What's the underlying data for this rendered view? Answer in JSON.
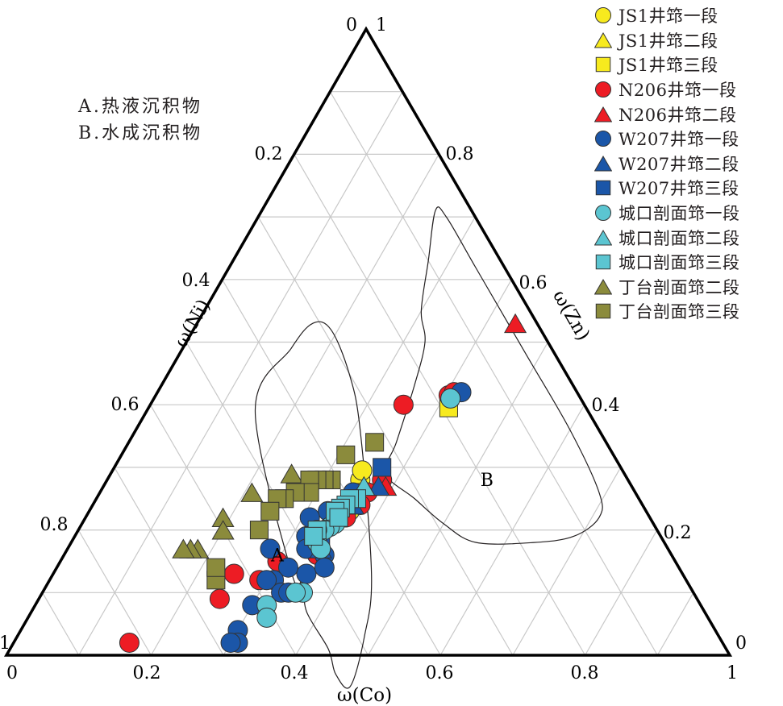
{
  "chart_data": {
    "type": "ternary-scatter",
    "title": "",
    "axes": {
      "bottom": {
        "label": "ω(Co)",
        "ticks": [
          "0",
          "0.2",
          "0.4",
          "0.6",
          "0.8",
          "1"
        ]
      },
      "left": {
        "label": "ω(Ni)",
        "ticks": [
          "0",
          "0.2",
          "0.4",
          "0.6",
          "0.8",
          "1"
        ]
      },
      "right": {
        "label": "ω(Zn)",
        "ticks": [
          "1",
          "0.8",
          "0.6",
          "0.4",
          "0.2",
          "0"
        ]
      }
    },
    "vertex_labels": {
      "top_left": "0",
      "top_right": "1",
      "bottom_left_top": "1",
      "bottom_left": "0",
      "bottom_right_top": "0",
      "bottom_right": "1"
    },
    "grid": true,
    "grid_step": 0.1,
    "region_labels": [
      {
        "id": "A",
        "text": "A",
        "co": 0.3,
        "ni": 0.55
      },
      {
        "id": "B",
        "text": "B",
        "co": 0.53,
        "ni": 0.2
      }
    ],
    "region_notes": [
      "A.热液沉积物",
      "B.水成沉积物"
    ],
    "regions": [
      {
        "name": "A",
        "boundary": [
          [
            0.33,
            0.54
          ],
          [
            0.35,
            0.53
          ],
          [
            0.38,
            0.55
          ],
          [
            0.44,
            0.55
          ],
          [
            0.47,
            0.56
          ],
          [
            0.5,
            0.55
          ],
          [
            0.48,
            0.49
          ],
          [
            0.44,
            0.43
          ],
          [
            0.31,
            0.33
          ],
          [
            0.25,
            0.3
          ],
          [
            0.19,
            0.29
          ],
          [
            0.16,
            0.31
          ],
          [
            0.15,
            0.36
          ],
          [
            0.15,
            0.46
          ]
        ]
      },
      {
        "name": "B",
        "boundary": [
          [
            0.38,
            0.33
          ],
          [
            0.44,
            0.31
          ],
          [
            0.5,
            0.29
          ],
          [
            0.56,
            0.26
          ],
          [
            0.64,
            0.18
          ],
          [
            0.69,
            0.12
          ],
          [
            0.71,
            0.07
          ],
          [
            0.69,
            0.05
          ],
          [
            0.6,
            0.04
          ],
          [
            0.48,
            0.04
          ],
          [
            0.34,
            0.04
          ],
          [
            0.26,
            0.04
          ],
          [
            0.24,
            0.05
          ],
          [
            0.27,
            0.1
          ],
          [
            0.3,
            0.15
          ],
          [
            0.33,
            0.17
          ],
          [
            0.35,
            0.22
          ],
          [
            0.37,
            0.29
          ]
        ]
      }
    ],
    "legend_position": "top-right",
    "series": [
      {
        "name": "JS1井筇一段",
        "marker": "circle",
        "color": "#f7ea1e",
        "points": [
          [
            0.345,
            0.45
          ],
          [
            0.36,
            0.41
          ],
          [
            0.355,
            0.39
          ],
          [
            0.35,
            0.37
          ],
          [
            0.345,
            0.36
          ]
        ]
      },
      {
        "name": "JS1井筇二段",
        "marker": "triangle",
        "color": "#f7ea1e",
        "points": []
      },
      {
        "name": "JS1井筇三段",
        "marker": "square",
        "color": "#f7ea1e",
        "points": [
          [
            0.36,
            0.38
          ],
          [
            0.415,
            0.19
          ],
          [
            0.355,
            0.42
          ]
        ]
      },
      {
        "name": "N206井筇一段",
        "marker": "circle",
        "color": "#ed1c24",
        "points": [
          [
            0.405,
            0.18
          ],
          [
            0.41,
            0.17
          ],
          [
            0.38,
            0.34
          ],
          [
            0.37,
            0.37
          ],
          [
            0.37,
            0.39
          ],
          [
            0.36,
            0.42
          ],
          [
            0.35,
            0.49
          ],
          [
            0.3,
            0.55
          ],
          [
            0.29,
            0.59
          ],
          [
            0.25,
            0.62
          ],
          [
            0.25,
            0.66
          ],
          [
            0.16,
            0.82
          ],
          [
            0.35,
            0.25
          ]
        ]
      },
      {
        "name": "N206井筇二段",
        "marker": "triangle",
        "color": "#ed1c24",
        "points": [
          [
            0.44,
            0.03
          ],
          [
            0.39,
            0.34
          ]
        ]
      },
      {
        "name": "W207井筇一段",
        "marker": "circle",
        "color": "#1b56a8",
        "points": [
          [
            0.42,
            0.16
          ],
          [
            0.35,
            0.39
          ],
          [
            0.33,
            0.44
          ],
          [
            0.31,
            0.47
          ],
          [
            0.32,
            0.49
          ],
          [
            0.33,
            0.5
          ],
          [
            0.35,
            0.52
          ],
          [
            0.32,
            0.54
          ],
          [
            0.31,
            0.57
          ],
          [
            0.3,
            0.58
          ],
          [
            0.3,
            0.62
          ],
          [
            0.33,
            0.57
          ],
          [
            0.34,
            0.56
          ],
          [
            0.3,
            0.66
          ],
          [
            0.31,
            0.67
          ],
          [
            0.3,
            0.68
          ],
          [
            0.28,
            0.55
          ],
          [
            0.36,
            0.48
          ],
          [
            0.37,
            0.49
          ]
        ]
      },
      {
        "name": "W207井筇二段",
        "marker": "triangle",
        "color": "#1b56a8",
        "points": [
          [
            0.38,
            0.35
          ],
          [
            0.36,
            0.4
          ],
          [
            0.35,
            0.48
          ]
        ]
      },
      {
        "name": "W207井筇三段",
        "marker": "square",
        "color": "#1b56a8",
        "points": [
          [
            0.37,
            0.33
          ],
          [
            0.34,
            0.47
          ]
        ]
      },
      {
        "name": "城口剖面筇一段",
        "marker": "circle",
        "color": "#5bc5d1",
        "points": [
          [
            0.41,
            0.18
          ],
          [
            0.35,
            0.44
          ],
          [
            0.345,
            0.45
          ],
          [
            0.34,
            0.46
          ],
          [
            0.33,
            0.47
          ],
          [
            0.34,
            0.48
          ],
          [
            0.35,
            0.48
          ],
          [
            0.36,
            0.54
          ],
          [
            0.35,
            0.55
          ],
          [
            0.32,
            0.6
          ],
          [
            0.33,
            0.61
          ]
        ]
      },
      {
        "name": "城口剖面筇二段",
        "marker": "triangle",
        "color": "#5bc5d1",
        "points": [
          [
            0.36,
            0.37
          ]
        ]
      },
      {
        "name": "城口剖面筇三段",
        "marker": "square",
        "color": "#5bc5d1",
        "points": [
          [
            0.36,
            0.39
          ],
          [
            0.35,
            0.4
          ],
          [
            0.35,
            0.41
          ],
          [
            0.345,
            0.42
          ],
          [
            0.34,
            0.43
          ],
          [
            0.35,
            0.43
          ],
          [
            0.33,
            0.47
          ],
          [
            0.33,
            0.48
          ]
        ]
      },
      {
        "name": "丁台剖面筇二段",
        "marker": "triangle",
        "color": "#8b8b3c",
        "points": [
          [
            0.25,
            0.46
          ],
          [
            0.21,
            0.53
          ],
          [
            0.19,
            0.59
          ],
          [
            0.2,
            0.6
          ],
          [
            0.18,
            0.65
          ],
          [
            0.17,
            0.66
          ],
          [
            0.16,
            0.67
          ]
        ]
      },
      {
        "name": "丁台剖面筇三段",
        "marker": "square",
        "color": "#8b8b3c",
        "points": [
          [
            0.34,
            0.32
          ],
          [
            0.31,
            0.37
          ],
          [
            0.31,
            0.41
          ],
          [
            0.3,
            0.42
          ],
          [
            0.29,
            0.43
          ],
          [
            0.28,
            0.44
          ],
          [
            0.29,
            0.45
          ],
          [
            0.27,
            0.47
          ],
          [
            0.26,
            0.49
          ],
          [
            0.25,
            0.5
          ],
          [
            0.25,
            0.52
          ],
          [
            0.25,
            0.55
          ],
          [
            0.23,
            0.65
          ],
          [
            0.22,
            0.64
          ]
        ]
      }
    ]
  }
}
